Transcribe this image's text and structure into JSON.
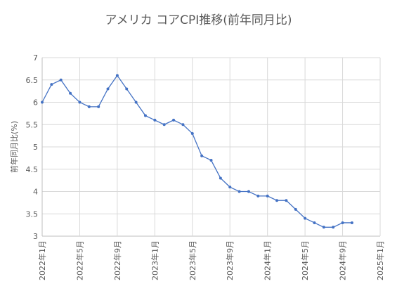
{
  "chart_data": {
    "type": "line",
    "title": "アメリカ コアCPI推移(前年同月比)",
    "xlabel": "",
    "ylabel": "前年同月比(%)",
    "ylim": [
      3,
      7
    ],
    "yticks": [
      "3",
      "3.5",
      "4",
      "4.5",
      "5",
      "5.5",
      "6",
      "6.5",
      "7"
    ],
    "xticks": [
      "2022年1月",
      "2022年5月",
      "2022年9月",
      "2023年1月",
      "2023年5月",
      "2023年9月",
      "2024年1月",
      "2024年5月",
      "2024年9月",
      "2025年1月"
    ],
    "grid": true,
    "x": [
      "2022-01",
      "2022-02",
      "2022-03",
      "2022-04",
      "2022-05",
      "2022-06",
      "2022-07",
      "2022-08",
      "2022-09",
      "2022-10",
      "2022-11",
      "2022-12",
      "2023-01",
      "2023-02",
      "2023-03",
      "2023-04",
      "2023-05",
      "2023-06",
      "2023-07",
      "2023-08",
      "2023-09",
      "2023-10",
      "2023-11",
      "2023-12",
      "2024-01",
      "2024-02",
      "2024-03",
      "2024-04",
      "2024-05",
      "2024-06",
      "2024-07",
      "2024-08",
      "2024-09",
      "2024-10"
    ],
    "series": [
      {
        "values": [
          6.0,
          6.4,
          6.5,
          6.2,
          6.0,
          5.9,
          5.9,
          6.3,
          6.6,
          6.3,
          6.0,
          5.7,
          5.6,
          5.5,
          5.6,
          5.5,
          5.3,
          4.8,
          4.7,
          4.3,
          4.1,
          4.0,
          4.0,
          3.9,
          3.9,
          3.8,
          3.8,
          3.6,
          3.4,
          3.3,
          3.2,
          3.2,
          3.3,
          3.3
        ],
        "color": "#4472c4"
      }
    ]
  }
}
